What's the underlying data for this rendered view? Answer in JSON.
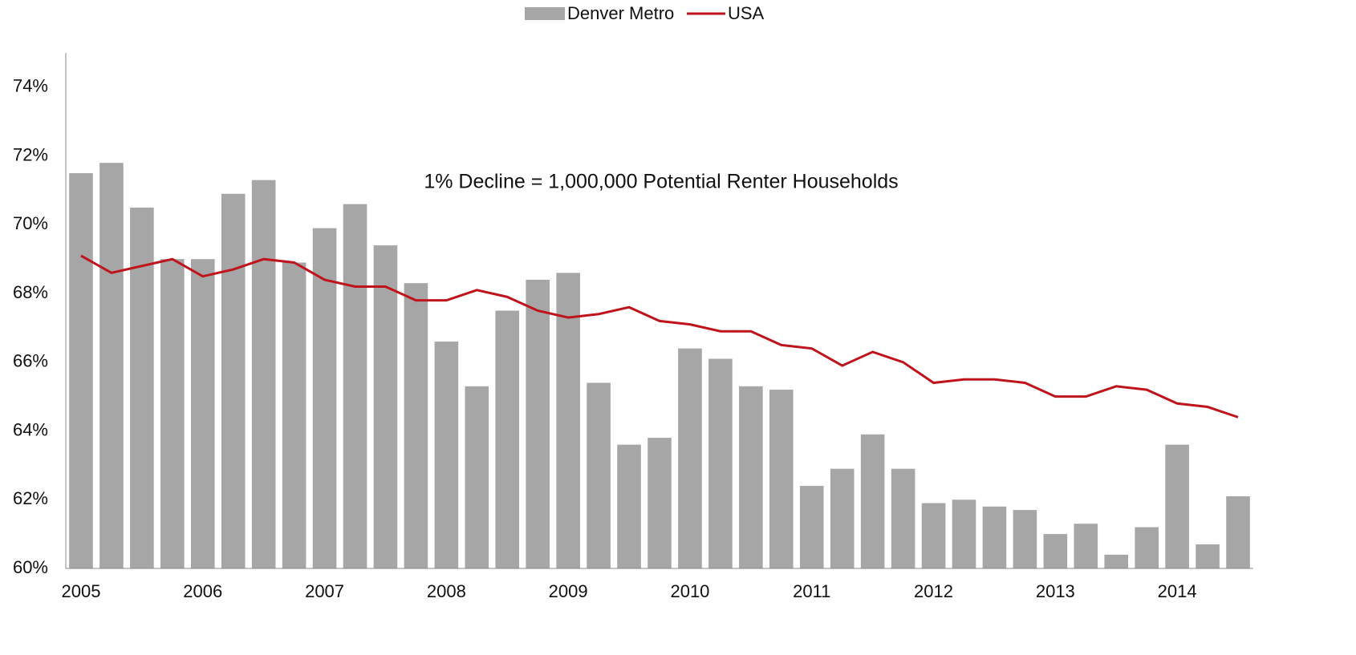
{
  "chart_data": {
    "type": "bar-line",
    "annotation": "1% Decline = 1,000,000 Potential Renter Households",
    "categories": [
      "2005",
      null,
      null,
      null,
      "2006",
      null,
      null,
      null,
      "2007",
      null,
      null,
      null,
      "2008",
      null,
      null,
      null,
      "2009",
      null,
      null,
      null,
      "2010",
      null,
      null,
      null,
      "2011",
      null,
      null,
      null,
      "2012",
      null,
      null,
      null,
      "2013",
      null,
      null,
      null,
      "2014",
      null,
      null
    ],
    "series": [
      {
        "name": "Denver Metro",
        "type": "bar",
        "color": "#a6a6a6",
        "values": [
          71.5,
          71.8,
          70.5,
          69.0,
          69.0,
          70.9,
          71.3,
          68.9,
          69.9,
          70.6,
          69.4,
          68.3,
          66.6,
          65.3,
          67.5,
          68.4,
          68.6,
          65.4,
          63.6,
          63.8,
          66.4,
          66.1,
          65.3,
          65.2,
          62.4,
          62.9,
          63.9,
          62.9,
          61.9,
          62.0,
          61.8,
          61.7,
          61.0,
          61.3,
          60.4,
          61.2,
          63.6,
          60.7,
          62.1
        ]
      },
      {
        "name": "USA",
        "type": "line",
        "color": "#c0141c",
        "values": [
          69.1,
          68.6,
          68.8,
          69.0,
          68.5,
          68.7,
          69.0,
          68.9,
          68.4,
          68.2,
          68.2,
          67.8,
          67.8,
          68.1,
          67.9,
          67.5,
          67.3,
          67.4,
          67.6,
          67.2,
          67.1,
          66.9,
          66.9,
          66.5,
          66.4,
          65.9,
          66.3,
          66.0,
          65.4,
          65.5,
          65.5,
          65.4,
          65.0,
          65.0,
          65.3,
          65.2,
          64.8,
          64.7,
          64.4
        ]
      }
    ],
    "ylim": [
      60,
      75
    ],
    "yticks": [
      {
        "value": 60,
        "label": "60%"
      },
      {
        "value": 62,
        "label": "62%"
      },
      {
        "value": 64,
        "label": "64%"
      },
      {
        "value": 66,
        "label": "66%"
      },
      {
        "value": 68,
        "label": "68%"
      },
      {
        "value": 70,
        "label": "70%"
      },
      {
        "value": 72,
        "label": "72%"
      },
      {
        "value": 74,
        "label": "74%"
      }
    ],
    "legend": "top"
  }
}
